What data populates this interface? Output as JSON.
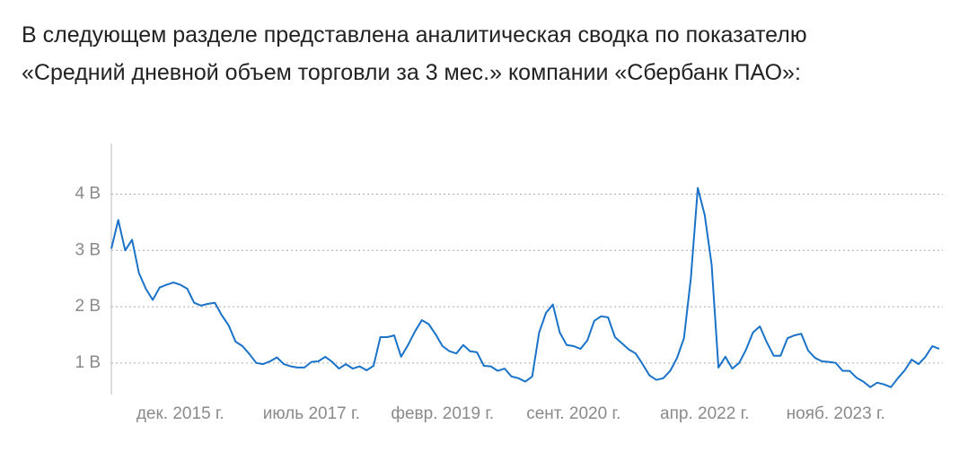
{
  "intro": [
    "В следующем разделе представлена аналитическая сводка по показателю",
    "«Средний дневной объем торговли за 3 мес.» компании «Сбербанк ПАО»:"
  ],
  "chart_data": {
    "type": "line",
    "categories": [
      null,
      null,
      null,
      null,
      null,
      null,
      null,
      null,
      null,
      null,
      "дек. 2015 г.",
      null,
      null,
      null,
      null,
      null,
      null,
      null,
      null,
      null,
      null,
      null,
      null,
      null,
      null,
      null,
      null,
      null,
      null,
      "июль 2017 г.",
      null,
      null,
      null,
      null,
      null,
      null,
      null,
      null,
      null,
      null,
      null,
      null,
      null,
      null,
      null,
      null,
      null,
      null,
      "февр. 2019 г.",
      null,
      null,
      null,
      null,
      null,
      null,
      null,
      null,
      null,
      null,
      null,
      null,
      null,
      null,
      null,
      null,
      null,
      null,
      "сент. 2020 г.",
      null,
      null,
      null,
      null,
      null,
      null,
      null,
      null,
      null,
      null,
      null,
      null,
      null,
      null,
      null,
      null,
      null,
      null,
      "апр. 2022 г.",
      null,
      null,
      null,
      null,
      null,
      null,
      null,
      null,
      null,
      null,
      null,
      null,
      null,
      null,
      null,
      null,
      null,
      null,
      "нояб. 2023 г.",
      null,
      null,
      null,
      null,
      null,
      null,
      null,
      null,
      null,
      null,
      null,
      null,
      null,
      null,
      null
    ],
    "series": [
      {
        "color": "#1a73c8",
        "values": [
          3.03,
          3.54,
          3.0,
          3.19,
          2.6,
          2.32,
          2.12,
          2.34,
          2.39,
          2.43,
          2.39,
          2.32,
          2.07,
          2.02,
          2.05,
          2.07,
          1.85,
          1.67,
          1.38,
          1.3,
          1.16,
          1.0,
          0.98,
          1.03,
          1.1,
          0.98,
          0.94,
          0.92,
          0.92,
          1.02,
          1.03,
          1.11,
          1.02,
          0.9,
          0.98,
          0.9,
          0.94,
          0.87,
          0.95,
          1.46,
          1.46,
          1.49,
          1.11,
          1.32,
          1.56,
          1.76,
          1.69,
          1.51,
          1.3,
          1.21,
          1.17,
          1.32,
          1.21,
          1.19,
          0.95,
          0.94,
          0.86,
          0.9,
          0.76,
          0.73,
          0.67,
          0.76,
          1.54,
          1.89,
          2.04,
          1.54,
          1.32,
          1.3,
          1.25,
          1.4,
          1.75,
          1.83,
          1.81,
          1.46,
          1.35,
          1.24,
          1.17,
          0.98,
          0.78,
          0.7,
          0.73,
          0.86,
          1.09,
          1.44,
          2.51,
          4.11,
          3.63,
          2.75,
          0.92,
          1.11,
          0.9,
          1.0,
          1.24,
          1.54,
          1.65,
          1.37,
          1.13,
          1.13,
          1.44,
          1.49,
          1.52,
          1.22,
          1.09,
          1.03,
          1.02,
          1.0,
          0.86,
          0.86,
          0.74,
          0.67,
          0.57,
          0.65,
          0.62,
          0.57,
          0.73,
          0.87,
          1.06,
          0.98,
          1.11,
          1.3,
          1.25
        ]
      }
    ],
    "ylim": [
      0.44,
      4.9
    ],
    "yticks": [
      {
        "value": 1,
        "label": "1 B"
      },
      {
        "value": 2,
        "label": "2 B"
      },
      {
        "value": 3,
        "label": "3 B"
      },
      {
        "value": 4,
        "label": "4 B"
      }
    ],
    "grid": true
  }
}
